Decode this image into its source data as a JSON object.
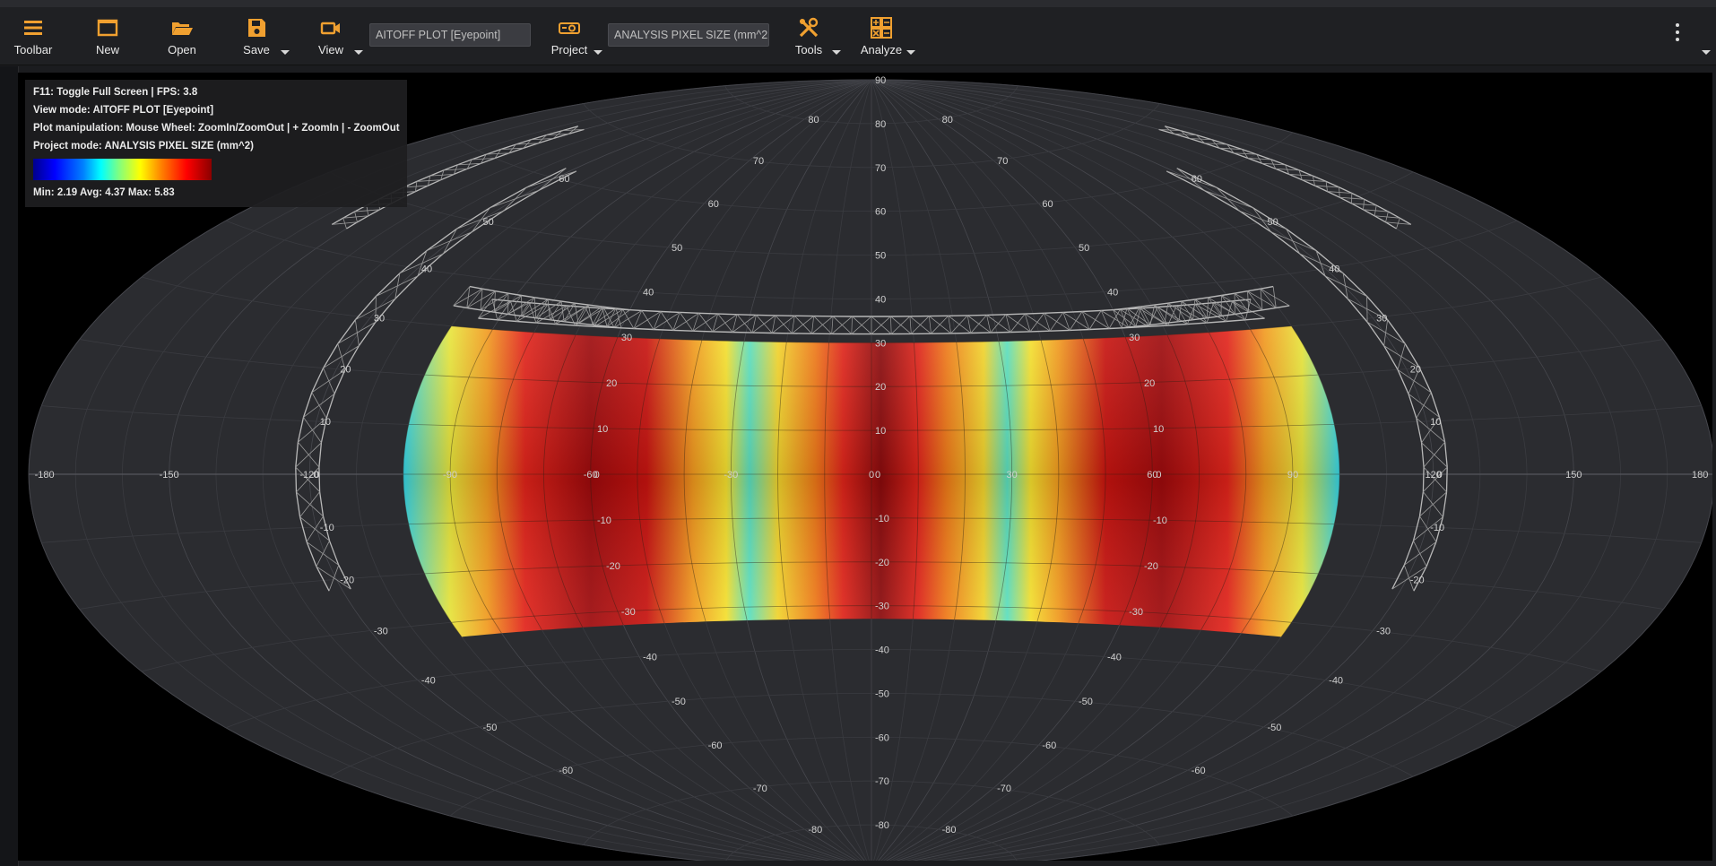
{
  "toolbar": {
    "items": [
      {
        "label": "Toolbar",
        "icon": "hamburger-icon"
      },
      {
        "label": "New",
        "icon": "window-icon"
      },
      {
        "label": "Open",
        "icon": "folder-open-icon"
      },
      {
        "label": "Save",
        "icon": "floppy-icon"
      },
      {
        "label": "View",
        "icon": "video-camera-icon"
      },
      {
        "label": "Project",
        "icon": "projector-icon"
      },
      {
        "label": "Tools",
        "icon": "tools-icon"
      },
      {
        "label": "Analyze",
        "icon": "calculator-icon"
      }
    ],
    "view_mode_value": "AITOFF PLOT [Eyepoint]",
    "project_mode_value": "ANALYSIS PIXEL SIZE (mm^2"
  },
  "info": {
    "line1": "F11: Toggle Full Screen | FPS: 3.8",
    "line2": "View mode: AITOFF PLOT [Eyepoint]",
    "line3": "Plot manipulation:  Mouse Wheel: ZoomIn/ZoomOut | + ZoomIn | - ZoomOut",
    "line4": "Project mode: ANALYSIS PIXEL SIZE (mm^2)",
    "stats": "Min: 2.19   Avg: 4.37   Max: 5.83"
  },
  "colors": {
    "accent": "#f0a030",
    "background": "#000000",
    "sphere": "#2b2c30",
    "toolbar": "#1f2023"
  },
  "plot": {
    "type": "aitoff",
    "lon_labels": [
      "-180",
      "-150",
      "-120",
      "-90",
      "-60",
      "-30",
      "0",
      "30",
      "60",
      "90",
      "120",
      "150",
      "180"
    ],
    "lat_labels": [
      "-80",
      "-70",
      "-60",
      "-50",
      "-40",
      "-30",
      "-20",
      "-10",
      "0",
      "10",
      "20",
      "30",
      "40",
      "50",
      "60",
      "70",
      "80",
      "90"
    ],
    "value_range": [
      2.19,
      5.83
    ]
  }
}
